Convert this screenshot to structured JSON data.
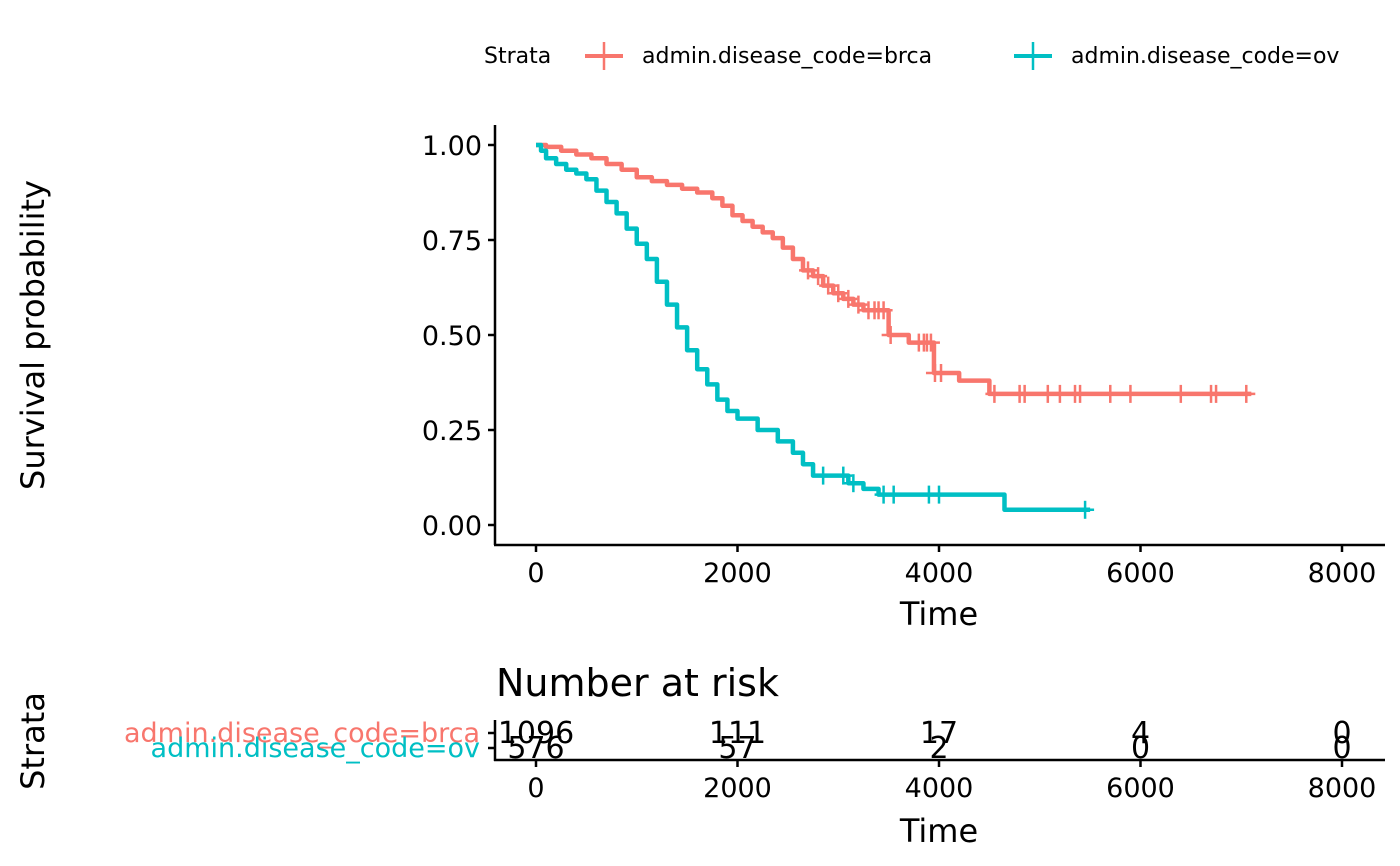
{
  "chart_data": {
    "type": "line",
    "subtype": "kaplan-meier-step",
    "title": "",
    "xlabel": "Time",
    "ylabel": "Survival probability",
    "xlim": [
      0,
      8000
    ],
    "ylim": [
      0,
      1
    ],
    "x_ticks": [
      0,
      2000,
      4000,
      6000,
      8000
    ],
    "x_tick_labels": [
      "0",
      "2000",
      "4000",
      "6000",
      "8000"
    ],
    "y_ticks": [
      0,
      0.25,
      0.5,
      0.75,
      1.0
    ],
    "y_tick_labels": [
      "0.00",
      "0.25",
      "0.50",
      "0.75",
      "1.00"
    ],
    "grid": false,
    "legend": {
      "title": "Strata",
      "position": "top",
      "entries": [
        "admin.disease_code=brca",
        "admin.disease_code=ov"
      ]
    },
    "series": [
      {
        "name": "admin.disease_code=brca",
        "color": "#F8766D",
        "steps": [
          [
            0,
            1.0
          ],
          [
            100,
            0.995
          ],
          [
            250,
            0.985
          ],
          [
            400,
            0.975
          ],
          [
            550,
            0.965
          ],
          [
            700,
            0.95
          ],
          [
            850,
            0.935
          ],
          [
            1000,
            0.915
          ],
          [
            1150,
            0.905
          ],
          [
            1300,
            0.895
          ],
          [
            1450,
            0.885
          ],
          [
            1600,
            0.875
          ],
          [
            1750,
            0.86
          ],
          [
            1850,
            0.84
          ],
          [
            1950,
            0.815
          ],
          [
            2050,
            0.8
          ],
          [
            2150,
            0.785
          ],
          [
            2250,
            0.77
          ],
          [
            2350,
            0.755
          ],
          [
            2450,
            0.73
          ],
          [
            2550,
            0.7
          ],
          [
            2650,
            0.67
          ],
          [
            2750,
            0.655
          ],
          [
            2850,
            0.63
          ],
          [
            2950,
            0.61
          ],
          [
            3050,
            0.595
          ],
          [
            3150,
            0.58
          ],
          [
            3250,
            0.565
          ],
          [
            3500,
            0.5
          ],
          [
            3700,
            0.48
          ],
          [
            3950,
            0.4
          ],
          [
            4200,
            0.38
          ],
          [
            4500,
            0.345
          ]
        ],
        "end_time": 7100,
        "censor_times": [
          2700,
          2800,
          2900,
          3000,
          3100,
          3200,
          3300,
          3360,
          3400,
          3450,
          3520,
          3800,
          3850,
          3880,
          3920,
          3960,
          4020,
          4550,
          4800,
          4850,
          5080,
          5200,
          5350,
          5400,
          5700,
          5900,
          6400,
          6700,
          6750,
          7050
        ]
      },
      {
        "name": "admin.disease_code=ov",
        "color": "#00BFC4",
        "steps": [
          [
            0,
            1.0
          ],
          [
            50,
            0.985
          ],
          [
            100,
            0.965
          ],
          [
            200,
            0.95
          ],
          [
            300,
            0.935
          ],
          [
            400,
            0.925
          ],
          [
            500,
            0.91
          ],
          [
            600,
            0.88
          ],
          [
            700,
            0.85
          ],
          [
            800,
            0.82
          ],
          [
            900,
            0.78
          ],
          [
            1000,
            0.74
          ],
          [
            1100,
            0.7
          ],
          [
            1200,
            0.64
          ],
          [
            1300,
            0.58
          ],
          [
            1400,
            0.52
          ],
          [
            1500,
            0.46
          ],
          [
            1600,
            0.41
          ],
          [
            1700,
            0.37
          ],
          [
            1800,
            0.33
          ],
          [
            1900,
            0.3
          ],
          [
            2000,
            0.28
          ],
          [
            2200,
            0.25
          ],
          [
            2400,
            0.22
          ],
          [
            2550,
            0.19
          ],
          [
            2650,
            0.16
          ],
          [
            2750,
            0.13
          ],
          [
            3100,
            0.11
          ],
          [
            3250,
            0.095
          ],
          [
            3400,
            0.08
          ],
          [
            4650,
            0.04
          ]
        ],
        "end_time": 5500,
        "censor_times": [
          2850,
          3050,
          3150,
          3450,
          3550,
          3900,
          4000,
          5450
        ]
      }
    ]
  },
  "risk_table": {
    "title": "Number at risk",
    "ylabel": "Strata",
    "xlabel": "Time",
    "times": [
      0,
      2000,
      4000,
      6000,
      8000
    ],
    "time_labels": [
      "0",
      "2000",
      "4000",
      "6000",
      "8000"
    ],
    "rows": [
      {
        "label": "admin.disease_code=brca",
        "color": "#F8766D",
        "counts": [
          "1096",
          "111",
          "17",
          "4",
          "0"
        ]
      },
      {
        "label": "admin.disease_code=ov",
        "color": "#00BFC4",
        "counts": [
          "576",
          "57",
          "2",
          "0",
          "0"
        ]
      }
    ]
  }
}
